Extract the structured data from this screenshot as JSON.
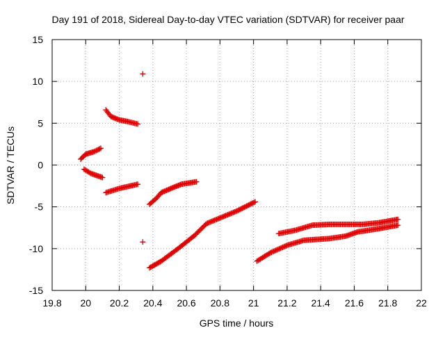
{
  "chart_data": {
    "type": "scatter",
    "title": "Day 191 of 2018, Sidereal Day-to-day VTEC variation (SDTVAR) for receiver paar",
    "xlabel": "GPS time / hours",
    "ylabel": "SDTVAR / TECUs",
    "xlim": [
      19.8,
      22
    ],
    "ylim": [
      -15,
      15
    ],
    "xticks": [
      19.8,
      20,
      20.2,
      20.4,
      20.6,
      20.8,
      21,
      21.2,
      21.4,
      21.6,
      21.8,
      22
    ],
    "xtick_labels": [
      "19.8",
      "20",
      "20.2",
      "20.4",
      "20.6",
      "20.8",
      "21",
      "21.2",
      "21.4",
      "21.6",
      "21.8",
      "22"
    ],
    "yticks": [
      -15,
      -10,
      -5,
      0,
      5,
      10,
      15
    ],
    "ytick_labels": [
      "-15",
      "-10",
      "-5",
      "0",
      "5",
      "10",
      "15"
    ],
    "grid": true,
    "marker": "+",
    "color": "#e00000",
    "series": [
      {
        "name": "arc-a-upper",
        "segments": [
          [
            [
              19.97,
              0.7
            ],
            [
              20.0,
              1.3
            ],
            [
              20.05,
              1.6
            ],
            [
              20.09,
              2.0
            ]
          ]
        ]
      },
      {
        "name": "arc-a-lower",
        "segments": [
          [
            [
              19.99,
              -0.5
            ],
            [
              20.03,
              -1.0
            ],
            [
              20.1,
              -1.5
            ]
          ]
        ]
      },
      {
        "name": "arc-b-upper",
        "segments": [
          [
            [
              20.12,
              6.6
            ],
            [
              20.15,
              5.8
            ],
            [
              20.2,
              5.4
            ],
            [
              20.25,
              5.2
            ],
            [
              20.31,
              4.9
            ]
          ]
        ]
      },
      {
        "name": "arc-b-lower",
        "segments": [
          [
            [
              20.12,
              -3.3
            ],
            [
              20.2,
              -2.8
            ],
            [
              20.31,
              -2.3
            ]
          ]
        ]
      },
      {
        "name": "arc-c-upper",
        "segments": [
          [
            [
              20.38,
              -4.7
            ],
            [
              20.42,
              -4.0
            ],
            [
              20.45,
              -3.3
            ],
            [
              20.52,
              -2.7
            ],
            [
              20.57,
              -2.3
            ],
            [
              20.66,
              -2.0
            ]
          ]
        ]
      },
      {
        "name": "arc-c-lower",
        "segments": [
          [
            [
              20.38,
              -12.3
            ],
            [
              20.45,
              -11.5
            ],
            [
              20.55,
              -10.0
            ],
            [
              20.65,
              -8.4
            ],
            [
              20.72,
              -7.0
            ],
            [
              20.78,
              -6.5
            ],
            [
              20.9,
              -5.5
            ],
            [
              21.01,
              -4.4
            ]
          ]
        ]
      },
      {
        "name": "arc-d-upper",
        "segments": [
          [
            [
              21.15,
              -8.2
            ],
            [
              21.25,
              -7.8
            ],
            [
              21.35,
              -7.2
            ],
            [
              21.45,
              -7.1
            ],
            [
              21.55,
              -7.1
            ],
            [
              21.65,
              -7.1
            ],
            [
              21.75,
              -6.9
            ],
            [
              21.86,
              -6.5
            ]
          ]
        ]
      },
      {
        "name": "arc-d-lower",
        "segments": [
          [
            [
              21.02,
              -11.5
            ],
            [
              21.1,
              -10.5
            ],
            [
              21.2,
              -9.6
            ],
            [
              21.3,
              -9.0
            ],
            [
              21.45,
              -8.8
            ],
            [
              21.55,
              -8.5
            ],
            [
              21.62,
              -8.0
            ],
            [
              21.75,
              -7.6
            ],
            [
              21.86,
              -7.2
            ]
          ]
        ]
      }
    ],
    "outliers": [
      [
        20.34,
        10.9
      ],
      [
        20.34,
        -9.2
      ]
    ]
  }
}
